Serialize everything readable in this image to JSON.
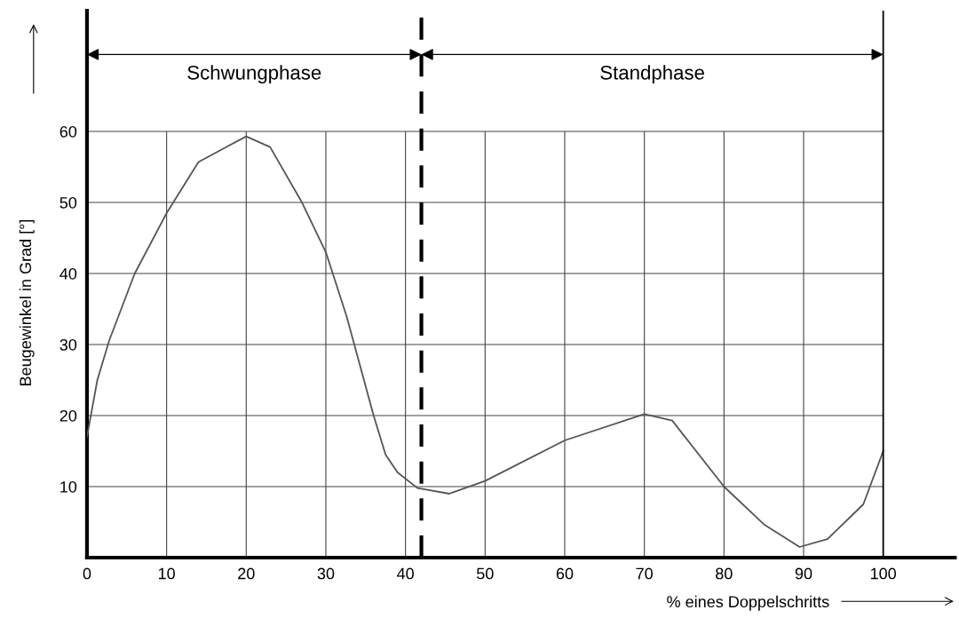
{
  "chart_data": {
    "type": "line",
    "xlabel": "% eines Doppelschritts",
    "ylabel": "Beugewinkel in Grad [°]",
    "series": [
      {
        "color": "#555555",
        "x": [
          0,
          1.3,
          2.8,
          6,
          10,
          14,
          20,
          23,
          27,
          30,
          32.6,
          36,
          37.5,
          39,
          41.5,
          45.5,
          50,
          60,
          70,
          73.5,
          80,
          85,
          89.5,
          93,
          97.5,
          100
        ],
        "values": [
          17,
          25,
          30.6,
          40,
          48.5,
          55.7,
          59.3,
          57.8,
          50,
          43,
          34,
          20,
          14.5,
          12,
          9.8,
          9,
          10.8,
          16.5,
          20.2,
          19.3,
          10,
          4.7,
          1.5,
          2.6,
          7.5,
          15
        ]
      }
    ],
    "xlim": [
      0,
      109
    ],
    "ylim": [
      0,
      77
    ],
    "xticks": [
      0,
      10,
      20,
      30,
      40,
      50,
      60,
      70,
      80,
      90,
      100
    ],
    "yticks": [
      10,
      20,
      30,
      40,
      50,
      60
    ],
    "grid": true,
    "legend": false,
    "marker": "none",
    "line_style": "solid",
    "ref_lines": [
      {
        "axis": "x",
        "value": 42,
        "line_style": "dashed",
        "color": "#000000"
      },
      {
        "axis": "x",
        "value": 100,
        "line_style": "solid",
        "color": "#000000"
      }
    ],
    "annotations": [
      "Schwungphase",
      "Standphase"
    ]
  }
}
